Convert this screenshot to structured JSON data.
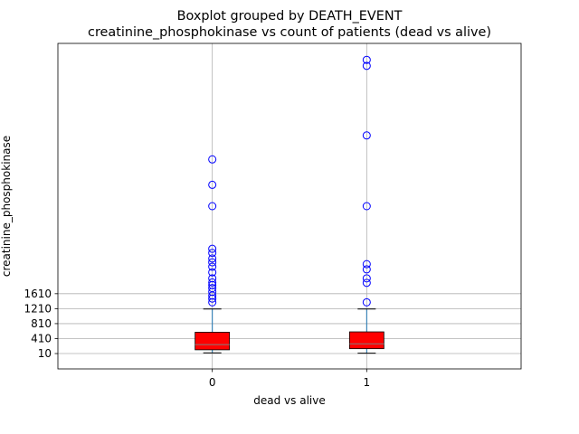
{
  "chart_data": {
    "type": "box",
    "title_line1": "Boxplot grouped by DEATH_EVENT",
    "title_line2": "creatinine_phosphokinase vs count of patients (dead vs alive)",
    "xlabel": "dead vs alive",
    "ylabel": "creatinine_phosphokinase",
    "categories": [
      "0",
      "1"
    ],
    "yticks": [
      10,
      410,
      810,
      1210,
      1610
    ],
    "ylim": [
      -400,
      8300
    ],
    "grid": true,
    "box_color": "#ff0000",
    "flier_color": "#0000ff",
    "boxes": [
      {
        "category": "0",
        "whislo": 30,
        "q1": 110,
        "median": 250,
        "q3": 580,
        "whishi": 1200,
        "fliers": [
          1380,
          1480,
          1560,
          1660,
          1760,
          1840,
          1910,
          2020,
          2180,
          2330,
          2450,
          2550,
          2700,
          2810,
          3950,
          4520,
          5200
        ]
      },
      {
        "category": "1",
        "whislo": 20,
        "q1": 140,
        "median": 270,
        "q3": 590,
        "whishi": 1200,
        "fliers": [
          1380,
          1900,
          2020,
          2260,
          2400,
          3950,
          5840,
          7700,
          7860
        ]
      }
    ]
  }
}
